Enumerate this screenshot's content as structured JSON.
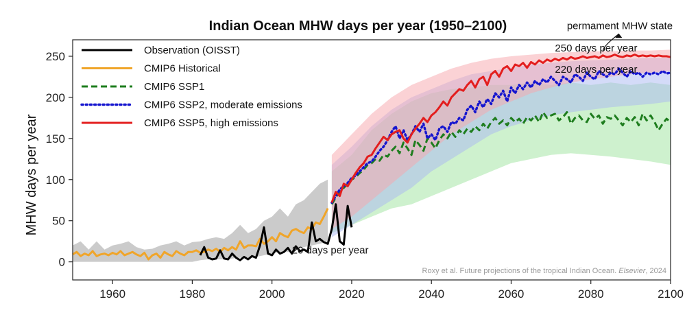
{
  "chart_data": {
    "type": "line",
    "title": "Indian Ocean MHW days per year (1950–2100)",
    "xlabel": "",
    "ylabel": "MHW days per year",
    "xlim": [
      1950,
      2100
    ],
    "ylim": [
      -22,
      270
    ],
    "xticks": [
      1960,
      1980,
      2000,
      2020,
      2040,
      2060,
      2080,
      2100
    ],
    "yticks": [
      0,
      50,
      100,
      150,
      200,
      250
    ],
    "grid": false,
    "legend_position": "top-left",
    "colors": {
      "observation": "#000000",
      "historical": "#f0a52a",
      "ssp1": "#1e7d1e",
      "ssp2": "#1515cf",
      "ssp5": "#e31e1e",
      "historical_band": "#b9b9b9",
      "ssp1_band": "#a6e6a6",
      "ssp2_band": "#a9b8f2",
      "ssp5_band": "#f7a6ac"
    },
    "series": [
      {
        "name": "Observation (OISST)",
        "style": "solid",
        "x": [
          1982,
          1983,
          1984,
          1985,
          1986,
          1987,
          1988,
          1989,
          1990,
          1991,
          1992,
          1993,
          1994,
          1995,
          1996,
          1997,
          1998,
          1999,
          2000,
          2001,
          2002,
          2003,
          2004,
          2005,
          2006,
          2007,
          2008,
          2009,
          2010,
          2011,
          2012,
          2013,
          2014,
          2015,
          2016,
          2017,
          2018,
          2019,
          2020
        ],
        "values": [
          8,
          18,
          5,
          3,
          4,
          14,
          4,
          3,
          10,
          5,
          2,
          6,
          3,
          7,
          5,
          20,
          42,
          10,
          8,
          15,
          10,
          12,
          17,
          10,
          19,
          13,
          15,
          12,
          48,
          25,
          28,
          24,
          22,
          40,
          70,
          25,
          21,
          68,
          42
        ]
      },
      {
        "name": "CMIP6 Historical",
        "style": "solid",
        "x": [
          1950,
          1951,
          1952,
          1953,
          1954,
          1955,
          1956,
          1957,
          1958,
          1959,
          1960,
          1961,
          1962,
          1963,
          1964,
          1965,
          1966,
          1967,
          1968,
          1969,
          1970,
          1971,
          1972,
          1973,
          1974,
          1975,
          1976,
          1977,
          1978,
          1979,
          1980,
          1981,
          1982,
          1983,
          1984,
          1985,
          1986,
          1987,
          1988,
          1989,
          1990,
          1991,
          1992,
          1993,
          1994,
          1995,
          1996,
          1997,
          1998,
          1999,
          2000,
          2001,
          2002,
          2003,
          2004,
          2005,
          2006,
          2007,
          2008,
          2009,
          2010,
          2011,
          2012,
          2013,
          2014
        ],
        "values": [
          9,
          12,
          7,
          10,
          8,
          13,
          7,
          9,
          10,
          8,
          11,
          9,
          13,
          8,
          10,
          12,
          9,
          7,
          11,
          3,
          8,
          10,
          5,
          12,
          9,
          7,
          13,
          10,
          8,
          12,
          12,
          14,
          11,
          12,
          15,
          13,
          16,
          12,
          17,
          14,
          18,
          15,
          25,
          17,
          20,
          20,
          19,
          28,
          22,
          25,
          30,
          25,
          35,
          32,
          30,
          38,
          40,
          37,
          35,
          42,
          40,
          48,
          46,
          55,
          65
        ]
      },
      {
        "name": "CMIP6 SSP1",
        "style": "dashed",
        "x": [
          2015,
          2016,
          2017,
          2018,
          2019,
          2020,
          2021,
          2022,
          2023,
          2024,
          2025,
          2026,
          2027,
          2028,
          2029,
          2030,
          2031,
          2032,
          2033,
          2034,
          2035,
          2036,
          2037,
          2038,
          2039,
          2040,
          2041,
          2042,
          2043,
          2044,
          2045,
          2046,
          2047,
          2048,
          2049,
          2050,
          2051,
          2052,
          2053,
          2054,
          2055,
          2056,
          2057,
          2058,
          2059,
          2060,
          2061,
          2062,
          2063,
          2064,
          2065,
          2066,
          2067,
          2068,
          2069,
          2070,
          2071,
          2072,
          2073,
          2074,
          2075,
          2076,
          2077,
          2078,
          2079,
          2080,
          2081,
          2082,
          2083,
          2084,
          2085,
          2086,
          2087,
          2088,
          2089,
          2090,
          2091,
          2092,
          2093,
          2094,
          2095,
          2096,
          2097,
          2098,
          2099,
          2100
        ],
        "values": [
          70,
          78,
          85,
          90,
          95,
          100,
          103,
          108,
          112,
          118,
          120,
          125,
          123,
          130,
          128,
          135,
          140,
          132,
          145,
          138,
          130,
          148,
          142,
          135,
          150,
          145,
          138,
          148,
          155,
          150,
          158,
          152,
          160,
          155,
          162,
          158,
          165,
          160,
          168,
          162,
          170,
          175,
          168,
          172,
          166,
          175,
          170,
          174,
          168,
          176,
          172,
          178,
          170,
          182,
          175,
          178,
          180,
          172,
          176,
          182,
          168,
          175,
          178,
          172,
          170,
          180,
          174,
          178,
          168,
          176,
          174,
          178,
          172,
          166,
          175,
          170,
          176,
          166,
          180,
          172,
          178,
          170,
          160,
          168,
          174,
          170
        ]
      },
      {
        "name": "CMIP6 SSP2, moderate emissions",
        "style": "dotted",
        "x": [
          2015,
          2016,
          2017,
          2018,
          2019,
          2020,
          2021,
          2022,
          2023,
          2024,
          2025,
          2026,
          2027,
          2028,
          2029,
          2030,
          2031,
          2032,
          2033,
          2034,
          2035,
          2036,
          2037,
          2038,
          2039,
          2040,
          2041,
          2042,
          2043,
          2044,
          2045,
          2046,
          2047,
          2048,
          2049,
          2050,
          2051,
          2052,
          2053,
          2054,
          2055,
          2056,
          2057,
          2058,
          2059,
          2060,
          2061,
          2062,
          2063,
          2064,
          2065,
          2066,
          2067,
          2068,
          2069,
          2070,
          2071,
          2072,
          2073,
          2074,
          2075,
          2076,
          2077,
          2078,
          2079,
          2080,
          2081,
          2082,
          2083,
          2084,
          2085,
          2086,
          2087,
          2088,
          2089,
          2090,
          2091,
          2092,
          2093,
          2094,
          2095,
          2096,
          2097,
          2098,
          2099,
          2100
        ],
        "values": [
          72,
          80,
          88,
          92,
          96,
          102,
          105,
          110,
          115,
          120,
          122,
          128,
          135,
          140,
          148,
          158,
          165,
          150,
          160,
          148,
          155,
          165,
          158,
          168,
          150,
          155,
          148,
          162,
          165,
          158,
          170,
          168,
          175,
          172,
          185,
          190,
          182,
          195,
          188,
          198,
          192,
          205,
          200,
          208,
          195,
          212,
          205,
          215,
          210,
          218,
          212,
          220,
          215,
          222,
          218,
          225,
          220,
          215,
          225,
          222,
          218,
          228,
          225,
          220,
          230,
          225,
          222,
          232,
          228,
          225,
          230,
          228,
          235,
          230,
          225,
          232,
          228,
          230,
          225,
          230,
          228,
          230,
          228,
          232,
          229,
          230
        ]
      },
      {
        "name": "CMIP6 SSP5, high emissions",
        "style": "solid",
        "x": [
          2015,
          2016,
          2017,
          2018,
          2019,
          2020,
          2021,
          2022,
          2023,
          2024,
          2025,
          2026,
          2027,
          2028,
          2029,
          2030,
          2031,
          2032,
          2033,
          2034,
          2035,
          2036,
          2037,
          2038,
          2039,
          2040,
          2041,
          2042,
          2043,
          2044,
          2045,
          2046,
          2047,
          2048,
          2049,
          2050,
          2051,
          2052,
          2053,
          2054,
          2055,
          2056,
          2057,
          2058,
          2059,
          2060,
          2061,
          2062,
          2063,
          2064,
          2065,
          2066,
          2067,
          2068,
          2069,
          2070,
          2071,
          2072,
          2073,
          2074,
          2075,
          2076,
          2077,
          2078,
          2079,
          2080,
          2081,
          2082,
          2083,
          2084,
          2085,
          2086,
          2087,
          2088,
          2089,
          2090,
          2091,
          2092,
          2093,
          2094,
          2095,
          2096,
          2097,
          2098,
          2099,
          2100
        ],
        "values": [
          72,
          85,
          80,
          95,
          92,
          100,
          108,
          115,
          120,
          128,
          130,
          138,
          145,
          152,
          148,
          155,
          158,
          160,
          150,
          145,
          155,
          162,
          168,
          175,
          170,
          178,
          182,
          188,
          195,
          190,
          200,
          205,
          210,
          208,
          215,
          220,
          212,
          222,
          225,
          215,
          228,
          232,
          225,
          235,
          238,
          232,
          240,
          238,
          242,
          236,
          243,
          240,
          245,
          242,
          246,
          244,
          247,
          245,
          248,
          246,
          249,
          247,
          248,
          250,
          248,
          249,
          250,
          248,
          251,
          249,
          250,
          252,
          250,
          249,
          251,
          250,
          252,
          250,
          251,
          250,
          251,
          250,
          251,
          250,
          250,
          249
        ]
      }
    ],
    "bands": [
      {
        "series": "CMIP6 Historical",
        "x": [
          1950,
          1952,
          1954,
          1956,
          1958,
          1960,
          1962,
          1964,
          1966,
          1968,
          1970,
          1972,
          1974,
          1976,
          1978,
          1980,
          1982,
          1984,
          1986,
          1988,
          1990,
          1992,
          1994,
          1996,
          1998,
          2000,
          2002,
          2004,
          2006,
          2008,
          2010,
          2012,
          2014
        ],
        "upper": [
          20,
          25,
          15,
          25,
          15,
          20,
          22,
          25,
          18,
          15,
          16,
          20,
          22,
          25,
          20,
          24,
          25,
          28,
          30,
          28,
          35,
          45,
          35,
          40,
          50,
          55,
          65,
          55,
          70,
          75,
          85,
          95,
          100
        ],
        "lower": [
          0,
          0,
          0,
          0,
          0,
          0,
          0,
          0,
          0,
          0,
          0,
          0,
          0,
          0,
          0,
          0,
          2,
          3,
          3,
          3,
          4,
          5,
          5,
          6,
          8,
          10,
          12,
          12,
          15,
          18,
          20,
          22,
          25
        ]
      },
      {
        "series": "CMIP6 SSP1",
        "x": [
          2015,
          2020,
          2025,
          2030,
          2035,
          2040,
          2045,
          2050,
          2055,
          2060,
          2065,
          2070,
          2075,
          2080,
          2085,
          2090,
          2095,
          2100
        ],
        "upper": [
          110,
          130,
          160,
          180,
          195,
          205,
          210,
          212,
          215,
          215,
          218,
          215,
          218,
          215,
          218,
          215,
          218,
          215
        ],
        "lower": [
          35,
          45,
          55,
          65,
          70,
          80,
          90,
          100,
          110,
          120,
          125,
          130,
          132,
          130,
          128,
          125,
          122,
          118
        ]
      },
      {
        "series": "CMIP6 SSP2, moderate emissions",
        "x": [
          2015,
          2020,
          2025,
          2030,
          2035,
          2040,
          2045,
          2050,
          2055,
          2060,
          2065,
          2070,
          2075,
          2080,
          2085,
          2090,
          2095,
          2100
        ],
        "upper": [
          118,
          140,
          165,
          185,
          200,
          210,
          220,
          228,
          232,
          236,
          240,
          242,
          244,
          245,
          246,
          247,
          248,
          248
        ],
        "lower": [
          30,
          45,
          60,
          75,
          90,
          110,
          125,
          140,
          155,
          165,
          172,
          178,
          182,
          185,
          188,
          190,
          192,
          195
        ]
      },
      {
        "series": "CMIP6 SSP5, high emissions",
        "x": [
          2015,
          2020,
          2025,
          2030,
          2035,
          2040,
          2045,
          2050,
          2055,
          2060,
          2065,
          2070,
          2075,
          2080,
          2085,
          2090,
          2095,
          2100
        ],
        "upper": [
          130,
          155,
          180,
          200,
          215,
          225,
          235,
          242,
          247,
          250,
          252,
          254,
          255,
          256,
          256,
          257,
          257,
          258
        ],
        "lower": [
          40,
          55,
          75,
          95,
          115,
          135,
          155,
          170,
          185,
          195,
          205,
          212,
          218,
          222,
          225,
          228,
          230,
          232
        ]
      }
    ],
    "annotations": [
      {
        "id": "permanent",
        "text": "permament MHW state",
        "x": 2074,
        "y": 283
      },
      {
        "id": "ssp5_level",
        "text": "250 days per year",
        "x": 2071,
        "y": 256
      },
      {
        "id": "ssp2_level",
        "text": "220 days per year",
        "x": 2071,
        "y": 230
      },
      {
        "id": "obs_level",
        "text": "20 days per year",
        "x": 2005,
        "y": 10
      }
    ],
    "credit": {
      "plain": "Roxy et al. Future projections of the tropical Indian Ocean. ",
      "italic": "Elsevier",
      "tail": ", 2024"
    }
  }
}
